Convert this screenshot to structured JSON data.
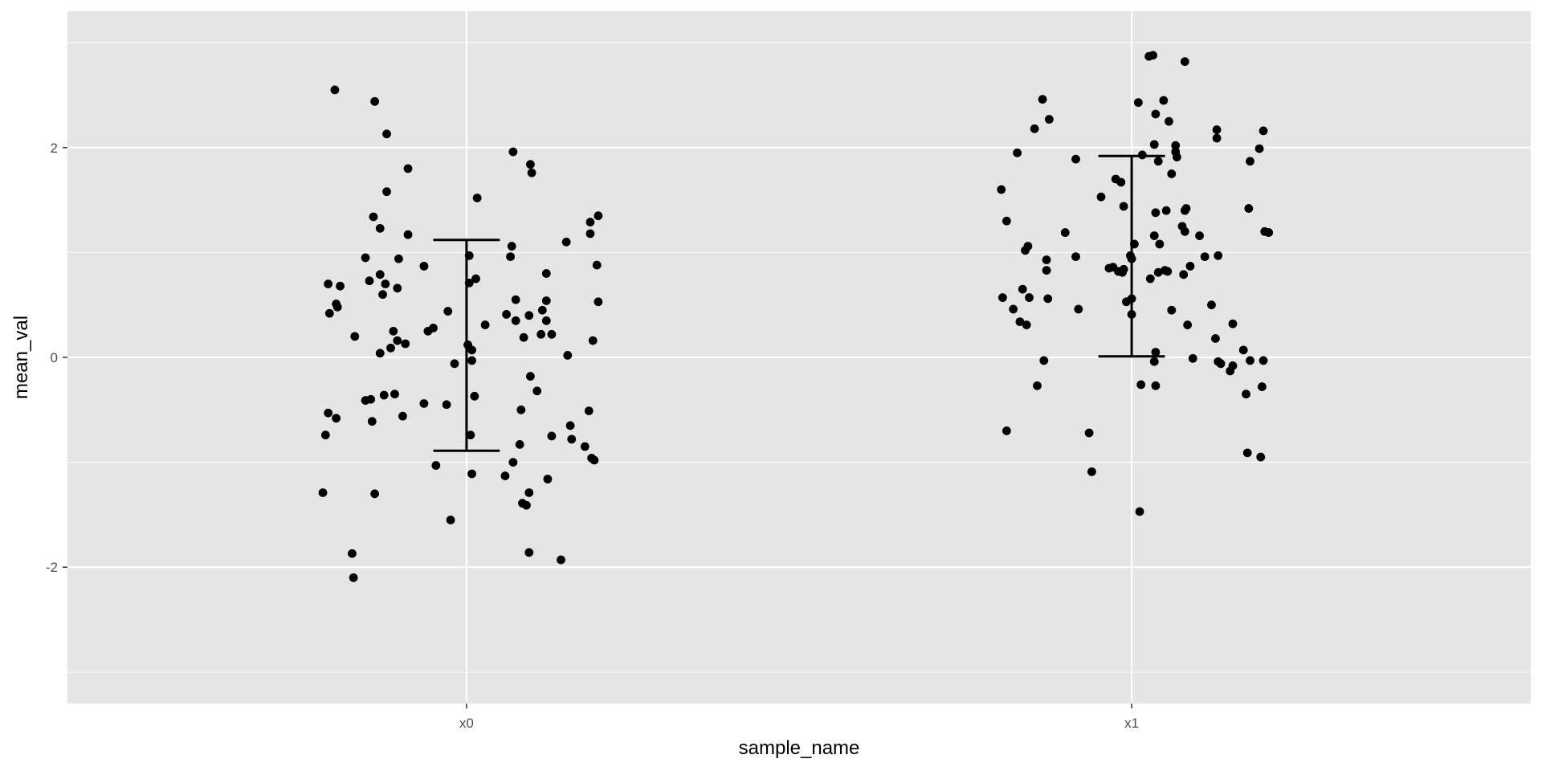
{
  "chart_data": {
    "type": "scatter",
    "subtype": "jitter-with-errorbars",
    "title": "",
    "xlabel": "sample_name",
    "ylabel": "mean_val",
    "categories": [
      "x0",
      "x1"
    ],
    "ylim": [
      -3.3,
      3.3
    ],
    "yticks": [
      -2,
      0,
      2
    ],
    "yticklabels": [
      "-2",
      "0",
      "2"
    ],
    "grid": true,
    "legend": "none",
    "colors": {
      "panel": "#e5e5e5",
      "grid": "#ffffff",
      "point": "#000000",
      "errorbar": "#000000",
      "tick_text": "#4d4d4d"
    },
    "errorbars": [
      {
        "category": "x0",
        "ymin": -0.89,
        "ymax": 1.12
      },
      {
        "category": "x1",
        "ymin": 0.01,
        "ymax": 1.92
      }
    ],
    "series": [
      {
        "category": "x0",
        "points": [
          [
            -0.198,
            2.55
          ],
          [
            -0.138,
            2.44
          ],
          [
            -0.12,
            2.13
          ],
          [
            -0.088,
            1.8
          ],
          [
            -0.12,
            1.58
          ],
          [
            -0.14,
            1.34
          ],
          [
            -0.13,
            1.23
          ],
          [
            -0.102,
            0.94
          ],
          [
            -0.088,
            1.17
          ],
          [
            -0.152,
            0.95
          ],
          [
            -0.13,
            0.79
          ],
          [
            -0.122,
            0.7
          ],
          [
            -0.146,
            0.73
          ],
          [
            -0.126,
            0.6
          ],
          [
            -0.104,
            0.66
          ],
          [
            -0.19,
            0.68
          ],
          [
            -0.196,
            0.51
          ],
          [
            -0.194,
            0.48
          ],
          [
            -0.208,
            0.7
          ],
          [
            -0.206,
            0.42
          ],
          [
            -0.168,
            0.2
          ],
          [
            -0.11,
            0.25
          ],
          [
            -0.092,
            0.13
          ],
          [
            -0.114,
            0.09
          ],
          [
            -0.13,
            0.04
          ],
          [
            -0.104,
            0.16
          ],
          [
            -0.064,
            0.87
          ],
          [
            -0.05,
            0.28
          ],
          [
            -0.058,
            0.25
          ],
          [
            -0.028,
            0.44
          ],
          [
            -0.152,
            -0.41
          ],
          [
            -0.144,
            -0.4
          ],
          [
            -0.124,
            -0.36
          ],
          [
            -0.108,
            -0.35
          ],
          [
            -0.096,
            -0.56
          ],
          [
            -0.142,
            -0.61
          ],
          [
            -0.196,
            -0.58
          ],
          [
            -0.208,
            -0.53
          ],
          [
            -0.212,
            -0.74
          ],
          [
            -0.064,
            -0.44
          ],
          [
            -0.03,
            -0.45
          ],
          [
            -0.216,
            -1.29
          ],
          [
            -0.138,
            -1.3
          ],
          [
            -0.046,
            -1.03
          ],
          [
            -0.018,
            -0.06
          ],
          [
            -0.024,
            -1.55
          ],
          [
            -0.172,
            -1.87
          ],
          [
            -0.17,
            -2.1
          ],
          [
            0.016,
            1.52
          ],
          [
            0.004,
            0.97
          ],
          [
            0.014,
            0.75
          ],
          [
            0.004,
            0.71
          ],
          [
            0.028,
            0.31
          ],
          [
            0.002,
            0.12
          ],
          [
            0.008,
            0.07
          ],
          [
            0.008,
            -0.03
          ],
          [
            0.012,
            -0.37
          ],
          [
            0.006,
            -0.74
          ],
          [
            0.008,
            -1.11
          ],
          [
            0.07,
            1.96
          ],
          [
            0.096,
            1.84
          ],
          [
            0.098,
            1.76
          ],
          [
            0.068,
            1.06
          ],
          [
            0.066,
            0.96
          ],
          [
            0.074,
            0.55
          ],
          [
            0.12,
            0.8
          ],
          [
            0.15,
            1.1
          ],
          [
            0.186,
            1.29
          ],
          [
            0.186,
            1.18
          ],
          [
            0.198,
            1.35
          ],
          [
            0.196,
            0.88
          ],
          [
            0.198,
            0.53
          ],
          [
            0.12,
            0.54
          ],
          [
            0.114,
            0.45
          ],
          [
            0.094,
            0.4
          ],
          [
            0.074,
            0.35
          ],
          [
            0.06,
            0.41
          ],
          [
            0.12,
            0.35
          ],
          [
            0.128,
            0.22
          ],
          [
            0.112,
            0.22
          ],
          [
            0.086,
            0.19
          ],
          [
            0.152,
            0.02
          ],
          [
            0.19,
            0.16
          ],
          [
            0.096,
            -0.18
          ],
          [
            0.106,
            -0.32
          ],
          [
            0.082,
            -0.5
          ],
          [
            0.08,
            -0.83
          ],
          [
            0.128,
            -0.75
          ],
          [
            0.156,
            -0.65
          ],
          [
            0.158,
            -0.78
          ],
          [
            0.178,
            -0.85
          ],
          [
            0.184,
            -0.51
          ],
          [
            0.188,
            -0.96
          ],
          [
            0.192,
            -0.98
          ],
          [
            0.07,
            -1.0
          ],
          [
            0.058,
            -1.13
          ],
          [
            0.084,
            -1.39
          ],
          [
            0.09,
            -1.41
          ],
          [
            0.094,
            -1.29
          ],
          [
            0.122,
            -1.16
          ],
          [
            0.094,
            -1.86
          ],
          [
            0.142,
            -1.93
          ]
        ]
      },
      {
        "category": "x1",
        "points": [
          [
            -0.196,
            1.6
          ],
          [
            -0.188,
            1.3
          ],
          [
            -0.172,
            1.95
          ],
          [
            -0.146,
            2.18
          ],
          [
            -0.134,
            2.46
          ],
          [
            -0.124,
            2.27
          ],
          [
            -0.084,
            1.89
          ],
          [
            -0.046,
            1.53
          ],
          [
            -0.024,
            1.7
          ],
          [
            -0.016,
            1.67
          ],
          [
            -0.1,
            1.19
          ],
          [
            -0.16,
            1.02
          ],
          [
            -0.156,
            1.06
          ],
          [
            -0.128,
            0.83
          ],
          [
            -0.128,
            0.93
          ],
          [
            -0.084,
            0.96
          ],
          [
            -0.02,
            0.82
          ],
          [
            -0.028,
            0.86
          ],
          [
            -0.034,
            0.85
          ],
          [
            -0.014,
            0.81
          ],
          [
            -0.012,
            0.84
          ],
          [
            -0.194,
            0.57
          ],
          [
            -0.178,
            0.46
          ],
          [
            -0.164,
            0.65
          ],
          [
            -0.154,
            0.57
          ],
          [
            -0.126,
            0.56
          ],
          [
            -0.168,
            0.34
          ],
          [
            -0.158,
            0.31
          ],
          [
            -0.08,
            0.46
          ],
          [
            -0.132,
            -0.03
          ],
          [
            -0.142,
            -0.27
          ],
          [
            -0.188,
            -0.7
          ],
          [
            -0.064,
            -0.72
          ],
          [
            -0.06,
            -1.09
          ],
          [
            0.032,
            2.88
          ],
          [
            0.026,
            2.87
          ],
          [
            0.08,
            2.82
          ],
          [
            0.01,
            2.43
          ],
          [
            0.048,
            2.45
          ],
          [
            0.036,
            2.32
          ],
          [
            0.056,
            2.25
          ],
          [
            0.034,
            2.03
          ],
          [
            0.066,
            2.02
          ],
          [
            0.066,
            1.96
          ],
          [
            0.068,
            1.91
          ],
          [
            0.04,
            1.87
          ],
          [
            0.06,
            1.75
          ],
          [
            0.016,
            1.93
          ],
          [
            -0.012,
            1.44
          ],
          [
            0.036,
            1.38
          ],
          [
            0.052,
            1.4
          ],
          [
            0.08,
            1.4
          ],
          [
            0.082,
            1.42
          ],
          [
            0.034,
            1.16
          ],
          [
            0.076,
            1.25
          ],
          [
            0.08,
            1.2
          ],
          [
            0.102,
            1.16
          ],
          [
            0.004,
            1.08
          ],
          [
            0.042,
            1.08
          ],
          [
            -0.002,
            0.97
          ],
          [
            0.0,
            0.94
          ],
          [
            0.04,
            0.81
          ],
          [
            0.05,
            0.83
          ],
          [
            0.054,
            0.82
          ],
          [
            0.088,
            0.87
          ],
          [
            0.078,
            0.79
          ],
          [
            0.11,
            0.96
          ],
          [
            0.13,
            0.97
          ],
          [
            0.028,
            0.75
          ],
          [
            -0.008,
            0.53
          ],
          [
            0.0,
            0.56
          ],
          [
            0.0,
            0.41
          ],
          [
            0.06,
            0.45
          ],
          [
            0.084,
            0.31
          ],
          [
            0.12,
            0.5
          ],
          [
            0.152,
            0.32
          ],
          [
            0.126,
            0.18
          ],
          [
            0.036,
            0.05
          ],
          [
            0.034,
            -0.04
          ],
          [
            0.092,
            -0.01
          ],
          [
            0.13,
            -0.04
          ],
          [
            0.134,
            -0.06
          ],
          [
            0.148,
            -0.13
          ],
          [
            0.152,
            -0.08
          ],
          [
            0.168,
            0.07
          ],
          [
            0.178,
            -0.03
          ],
          [
            0.198,
            -0.03
          ],
          [
            0.014,
            -0.26
          ],
          [
            0.036,
            -0.27
          ],
          [
            0.172,
            -0.35
          ],
          [
            0.196,
            -0.28
          ],
          [
            0.012,
            -1.47
          ],
          [
            0.174,
            -0.91
          ],
          [
            0.194,
            -0.95
          ],
          [
            0.128,
            2.09
          ],
          [
            0.128,
            2.17
          ],
          [
            0.178,
            1.87
          ],
          [
            0.176,
            1.42
          ],
          [
            0.192,
            1.99
          ],
          [
            0.198,
            2.16
          ],
          [
            0.2,
            1.2
          ],
          [
            0.206,
            1.19
          ]
        ]
      }
    ]
  }
}
